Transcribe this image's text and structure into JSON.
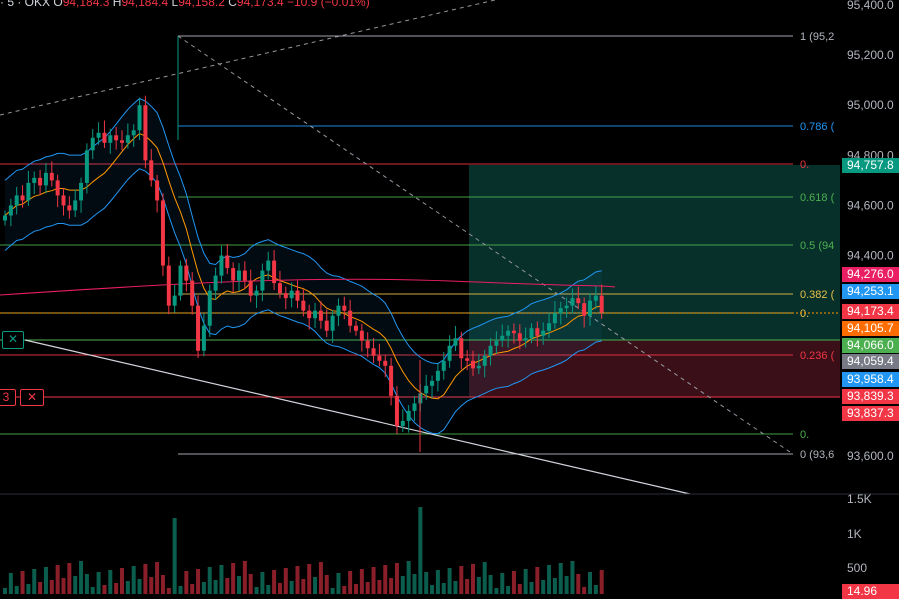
{
  "header": {
    "prefix": "· 5 · ",
    "exchange": "OKX",
    "o_label": "O",
    "o_value": "94,184.3",
    "h_label": "H",
    "h_value": "94,184.4",
    "l_label": "L",
    "l_value": "94,158.2",
    "c_label": "C",
    "c_value": "94,173.4",
    "change": "−10.9 (−0.01%)"
  },
  "price_axis": {
    "ticks": [
      "95,400.0",
      "95,200.0",
      "95,000.0",
      "94,800.0",
      "94,600.0",
      "94,400.0",
      "93,600.0"
    ]
  },
  "volume_axis": {
    "ticks": [
      "1.5K",
      "1K",
      "500"
    ]
  },
  "fib_labels": [
    "1 (95,2",
    "0.786 (",
    "0.",
    "0.618 (",
    "0.5 (94",
    "0.382 (",
    "0.",
    "0.236 (",
    "0.",
    "0 (93,6"
  ],
  "price_tags": [
    {
      "text": "94,757.8",
      "color": "#089981"
    },
    {
      "text": "94,276.0",
      "color": "#e91e63"
    },
    {
      "text": "94,253.1",
      "color": "#2196f3"
    },
    {
      "text": "94,173.4",
      "color": "#f23645"
    },
    {
      "text": "94,105.7",
      "color": "#ff6d00"
    },
    {
      "text": "94,066.0",
      "color": "#4caf50"
    },
    {
      "text": "94,059.4",
      "color": "#787b86"
    },
    {
      "text": "93,958.4",
      "color": "#2196f3"
    },
    {
      "text": "93,839.3",
      "color": "#f23645"
    },
    {
      "text": "93,837.3",
      "color": "#f23645"
    }
  ],
  "volume_tag": {
    "text": "14.96",
    "color": "#f23645"
  },
  "chips": {
    "left_close": "✕",
    "sl_value": "3",
    "sl_close": "✕"
  },
  "colors": {
    "up": "#089981",
    "down": "#f23645",
    "bb": "#2196f3",
    "ma": "#ff9800",
    "ma_long": "#e91e63"
  },
  "chart_data": {
    "type": "candlestick",
    "price_range": [
      93540,
      95420
    ],
    "fib_levels": [
      {
        "ratio": "1",
        "price": 95250
      },
      {
        "ratio": "0.786",
        "price": 94915
      },
      {
        "ratio": "0.705",
        "price": 94760
      },
      {
        "ratio": "0.618",
        "price": 94622
      },
      {
        "ratio": "0.5",
        "price": 94436
      },
      {
        "ratio": "0.382",
        "price": 94250
      },
      {
        "ratio": "0.3",
        "price": 94178
      },
      {
        "ratio": "0.236",
        "price": 94021
      },
      {
        "ratio": "0.1",
        "price": 93781
      },
      {
        "ratio": "0",
        "price": 93600
      }
    ],
    "position": {
      "entry": 94066,
      "target": 94757.8,
      "stop": 93839.3
    },
    "closes": [
      94560,
      94600,
      94640,
      94620,
      94690,
      94710,
      94680,
      94730,
      94700,
      94640,
      94600,
      94580,
      94620,
      94690,
      94820,
      94870,
      94890,
      94850,
      94880,
      94860,
      94850,
      94880,
      94900,
      95000,
      94780,
      94700,
      94620,
      94360,
      94200,
      94240,
      94360,
      94300,
      94200,
      94020,
      94120,
      94260,
      94320,
      94400,
      94350,
      94300,
      94340,
      94300,
      94240,
      94260,
      94340,
      94380,
      94290,
      94250,
      94230,
      94260,
      94220,
      94180,
      94150,
      94180,
      94140,
      94100,
      94160,
      94200,
      94180,
      94120,
      94100,
      94060,
      94030,
      94000,
      93980,
      93960,
      93840,
      93720,
      93740,
      93780,
      93810,
      93850,
      93880,
      93900,
      93940,
      93980,
      94040,
      94070,
      93990,
      93980,
      93950,
      93960,
      94000,
      94040,
      94060,
      94080,
      94100,
      94090,
      94060,
      94070,
      94110,
      94080,
      94100,
      94130,
      94170,
      94190,
      94200,
      94230,
      94210,
      94160,
      94220,
      94240,
      94173
    ]
  }
}
